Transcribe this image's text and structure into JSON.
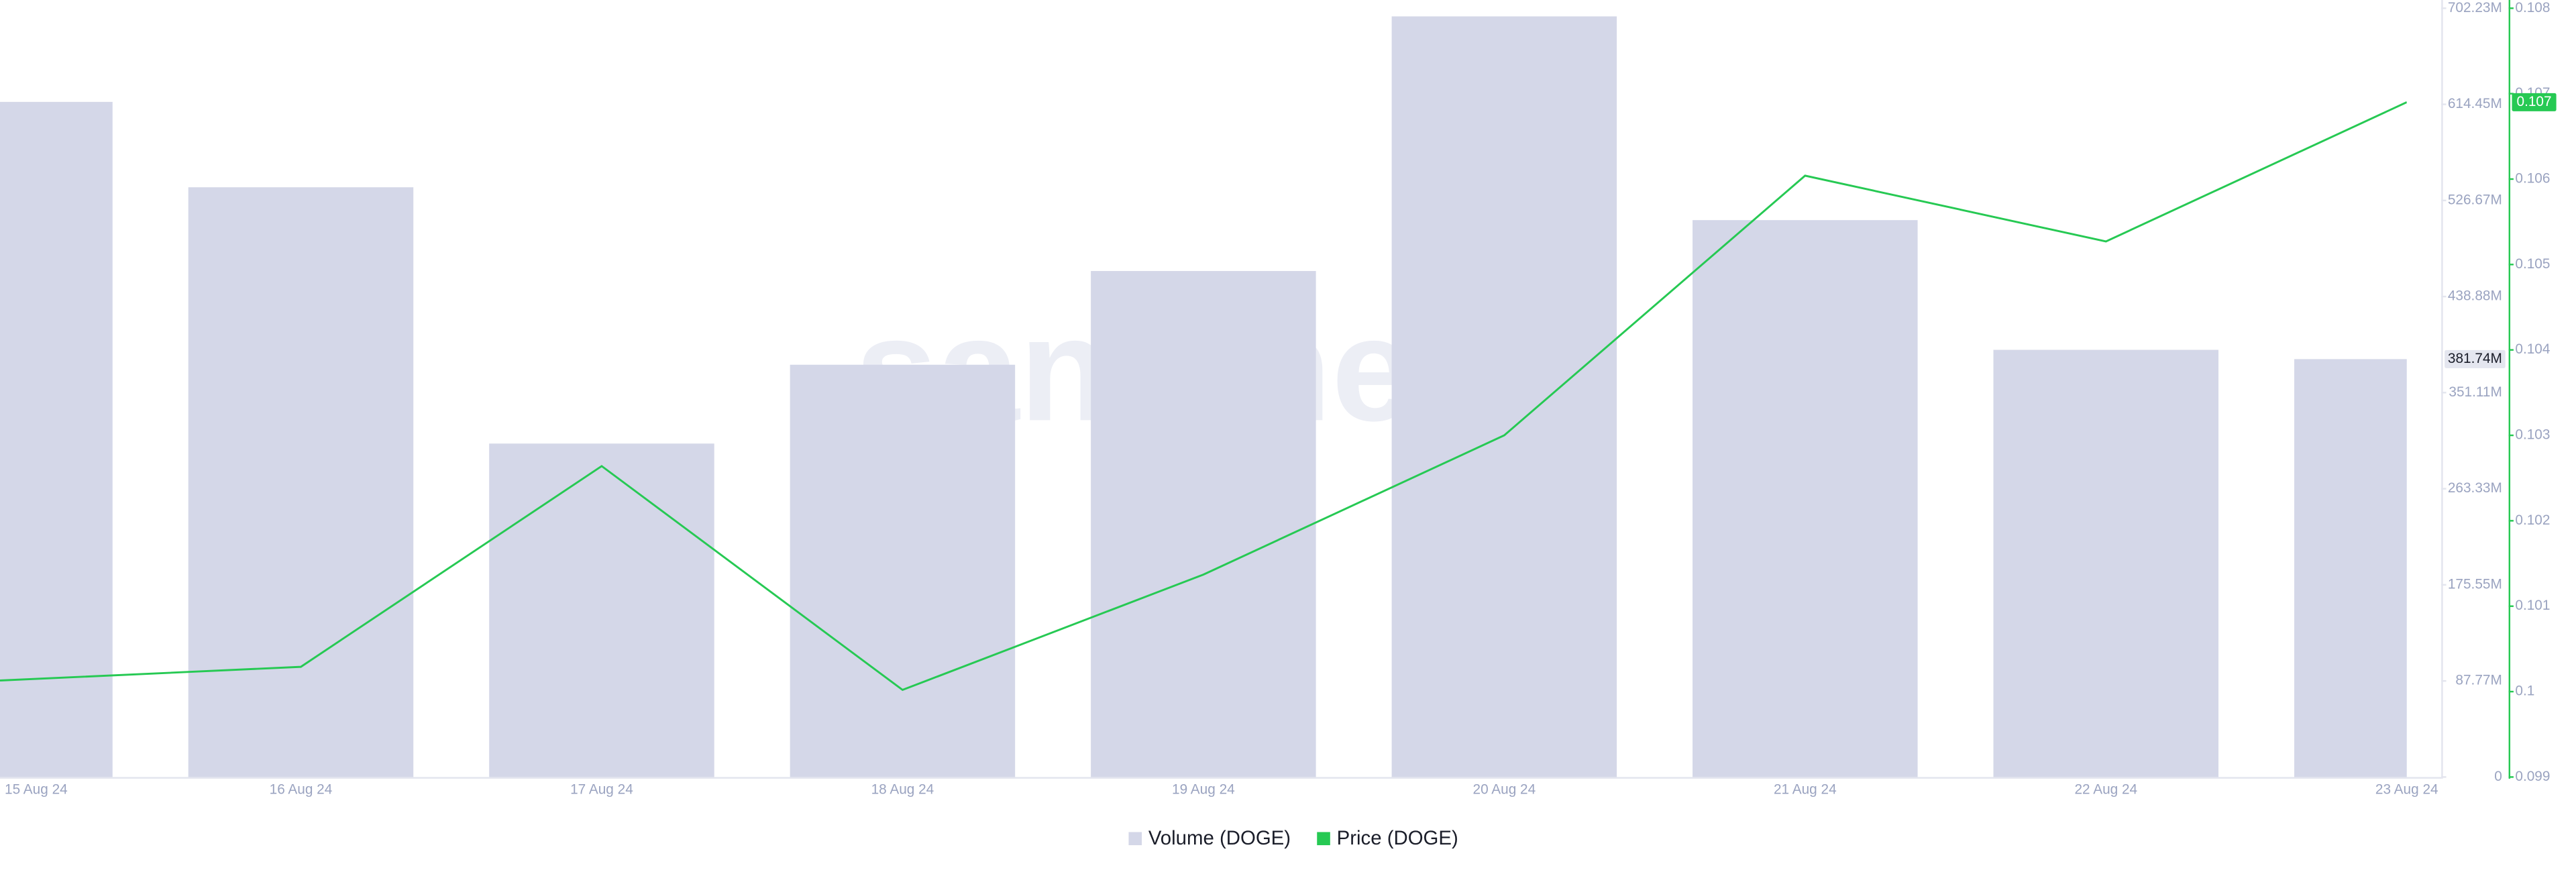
{
  "chart_data": {
    "type": "bar",
    "watermark": "santiment",
    "categories": [
      "15 Aug 24",
      "16 Aug 24",
      "17 Aug 24",
      "18 Aug 24",
      "19 Aug 24",
      "20 Aug 24",
      "21 Aug 24",
      "22 Aug 24",
      "23 Aug 24"
    ],
    "series": [
      {
        "name": "Volume (DOGE)",
        "type": "bar",
        "color": "#d4d7e8",
        "values": [
          616700000,
          538700000,
          304600000,
          376600000,
          462200000,
          694800000,
          508700000,
          390200000,
          381740000
        ],
        "value_labels": [
          null,
          null,
          null,
          null,
          null,
          null,
          null,
          null,
          "381.74M"
        ]
      },
      {
        "name": "Price (DOGE)",
        "type": "line",
        "axis": "y2",
        "color": "#26c953",
        "values": [
          0.10013,
          0.10029,
          0.10264,
          0.10002,
          0.10137,
          0.103,
          0.10604,
          0.10527,
          0.1069
        ],
        "value_labels": [
          null,
          null,
          null,
          null,
          null,
          null,
          null,
          null,
          "0.107"
        ]
      }
    ],
    "ylim": [
      0,
      702230000
    ],
    "yticks": [
      0,
      {
        "value": 87770000,
        "label": "87.77M"
      },
      {
        "value": 175550000,
        "label": "175.55M"
      },
      {
        "value": 263330000,
        "label": "263.33M"
      },
      {
        "value": 351110000,
        "label": "351.11M"
      },
      {
        "value": 438880000,
        "label": "438.88M"
      },
      {
        "value": 526670000,
        "label": "526.67M"
      },
      {
        "value": 614450000,
        "label": "614.45M"
      },
      {
        "value": 702230000,
        "label": "702.23M"
      }
    ],
    "y2lim": [
      0.099,
      0.108
    ],
    "y2ticks": [
      0.099,
      0.1,
      0.101,
      0.102,
      0.103,
      0.104,
      0.105,
      0.106,
      0.107,
      0.108
    ]
  }
}
